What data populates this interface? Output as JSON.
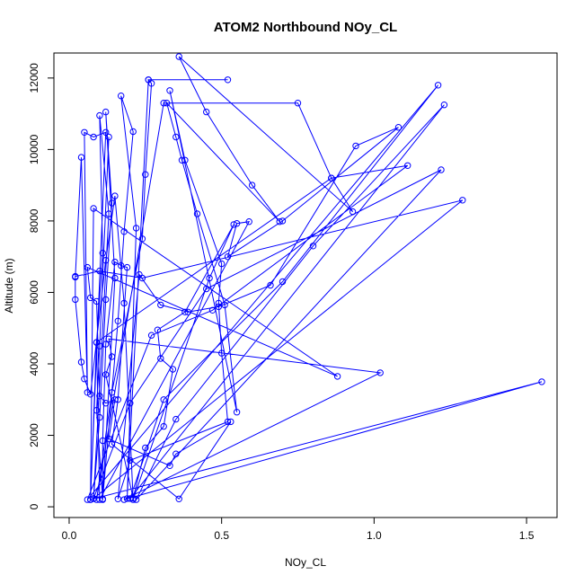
{
  "chart_data": {
    "type": "line",
    "title": "ATOM2 Northbound NOy_CL",
    "xlabel": "NOy_CL",
    "ylabel": "Altitude (m)",
    "xlim": [
      -0.05,
      1.6
    ],
    "ylim": [
      -300,
      12700
    ],
    "x_ticks": [
      0.0,
      0.5,
      1.0,
      1.5
    ],
    "x_tick_labels": [
      "0.0",
      "0.5",
      "1.0",
      "1.5"
    ],
    "y_ticks": [
      0,
      2000,
      4000,
      6000,
      8000,
      10000,
      12000
    ],
    "y_tick_labels": [
      "0",
      "2000",
      "4000",
      "6000",
      "8000",
      "10000",
      "12000"
    ],
    "grid": false,
    "series": [
      {
        "color": "#0000ff",
        "marker": "open-circle",
        "points": [
          [
            0.02,
            6430
          ],
          [
            0.04,
            9780
          ],
          [
            0.06,
            3200
          ],
          [
            0.05,
            10480
          ],
          [
            0.08,
            10350
          ],
          [
            0.12,
            10480
          ],
          [
            0.07,
            200
          ],
          [
            0.09,
            4600
          ],
          [
            0.11,
            7100
          ],
          [
            0.1,
            10950
          ],
          [
            0.13,
            8200
          ],
          [
            0.08,
            230
          ],
          [
            0.1,
            2500
          ],
          [
            0.12,
            5800
          ],
          [
            0.14,
            8500
          ],
          [
            0.12,
            11050
          ],
          [
            0.15,
            6400
          ],
          [
            0.11,
            220
          ],
          [
            0.16,
            5200
          ],
          [
            0.18,
            7700
          ],
          [
            0.21,
            10500
          ],
          [
            0.17,
            11500
          ],
          [
            0.22,
            7800
          ],
          [
            0.19,
            230
          ],
          [
            0.26,
            11950
          ],
          [
            0.52,
            11950
          ],
          [
            0.26,
            11950
          ],
          [
            0.27,
            11850
          ],
          [
            0.25,
            9300
          ],
          [
            0.24,
            7500
          ],
          [
            0.14,
            3200
          ],
          [
            0.09,
            200
          ],
          [
            0.31,
            11300
          ],
          [
            0.75,
            11300
          ],
          [
            0.86,
            9200
          ],
          [
            0.93,
            8260
          ],
          [
            0.36,
            12600
          ],
          [
            0.45,
            11050
          ],
          [
            0.6,
            9000
          ],
          [
            0.69,
            7980
          ],
          [
            0.32,
            11300
          ],
          [
            0.35,
            10350
          ],
          [
            0.37,
            9700
          ],
          [
            0.42,
            8200
          ],
          [
            0.51,
            5650
          ],
          [
            0.55,
            2650
          ],
          [
            0.33,
            11650
          ],
          [
            0.38,
            9700
          ],
          [
            0.5,
            6800
          ],
          [
            0.49,
            5700
          ],
          [
            0.5,
            4300
          ],
          [
            0.52,
            2380
          ],
          [
            0.2,
            1300
          ],
          [
            0.16,
            220
          ],
          [
            0.23,
            6500
          ],
          [
            0.3,
            5650
          ],
          [
            0.39,
            5450
          ],
          [
            0.49,
            5600
          ],
          [
            0.66,
            6200
          ],
          [
            0.94,
            10100
          ],
          [
            1.08,
            10620
          ],
          [
            0.7,
            8000
          ],
          [
            0.52,
            7000
          ],
          [
            0.55,
            7930
          ],
          [
            0.59,
            7980
          ],
          [
            0.1,
            200
          ],
          [
            0.09,
            4600
          ],
          [
            0.86,
            9200
          ],
          [
            1.11,
            9550
          ],
          [
            0.47,
            5500
          ],
          [
            0.27,
            4800
          ],
          [
            0.06,
            200
          ],
          [
            1.21,
            11800
          ],
          [
            0.7,
            6300
          ],
          [
            0.31,
            3000
          ],
          [
            0.2,
            230
          ],
          [
            1.23,
            11250
          ],
          [
            0.8,
            7300
          ],
          [
            0.35,
            2450
          ],
          [
            0.22,
            200
          ],
          [
            1.22,
            9430
          ],
          [
            0.45,
            6100
          ],
          [
            0.2,
            2900
          ],
          [
            0.08,
            230
          ],
          [
            1.29,
            8580
          ],
          [
            0.24,
            6400
          ],
          [
            0.1,
            6600
          ],
          [
            0.02,
            6450
          ],
          [
            0.02,
            5800
          ],
          [
            0.04,
            4050
          ],
          [
            0.05,
            3580
          ],
          [
            0.07,
            3150
          ],
          [
            0.12,
            6900
          ],
          [
            0.15,
            8700
          ],
          [
            0.18,
            5700
          ],
          [
            0.21,
            200
          ],
          [
            0.46,
            6400
          ],
          [
            0.54,
            7900
          ],
          [
            0.38,
            5450
          ],
          [
            0.29,
            4950
          ],
          [
            0.3,
            4150
          ],
          [
            0.34,
            3850
          ],
          [
            0.31,
            2250
          ],
          [
            0.25,
            1650
          ],
          [
            0.21,
            240
          ],
          [
            0.12,
            3700
          ],
          [
            0.14,
            4200
          ],
          [
            0.13,
            4700
          ],
          [
            1.02,
            3750
          ],
          [
            0.18,
            200
          ],
          [
            1.55,
            3500
          ],
          [
            0.07,
            200
          ],
          [
            0.08,
            8350
          ],
          [
            0.88,
            3650
          ],
          [
            0.06,
            6700
          ],
          [
            0.07,
            5850
          ],
          [
            0.09,
            5750
          ],
          [
            0.1,
            3100
          ],
          [
            0.12,
            2900
          ],
          [
            0.15,
            3000
          ],
          [
            0.13,
            1900
          ],
          [
            0.33,
            1150
          ],
          [
            0.35,
            1480
          ],
          [
            0.53,
            2380
          ],
          [
            0.36,
            220
          ],
          [
            0.14,
            1750
          ],
          [
            0.16,
            3000
          ],
          [
            0.19,
            6700
          ],
          [
            0.17,
            6750
          ],
          [
            0.15,
            6850
          ],
          [
            0.12,
            4550
          ],
          [
            0.11,
            1850
          ],
          [
            0.11,
            200
          ],
          [
            0.09,
            2700
          ],
          [
            0.1,
            4500
          ],
          [
            0.13,
            10350
          ]
        ]
      }
    ]
  }
}
